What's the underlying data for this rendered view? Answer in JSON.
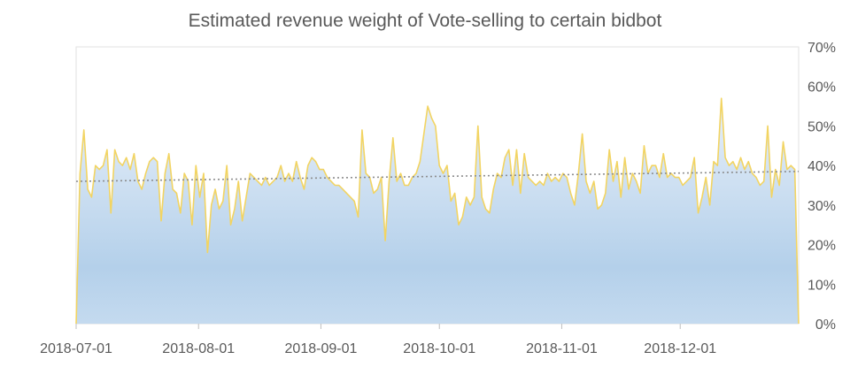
{
  "chart_data": {
    "type": "area",
    "title": "Estimated revenue weight of Vote-selling to certain bidbot",
    "xlabel": "",
    "ylabel": "",
    "x_range": [
      "2018-07-01",
      "2018-12-31"
    ],
    "ylim": [
      0,
      70
    ],
    "y_ticks": [
      "0%",
      "10%",
      "20%",
      "30%",
      "40%",
      "50%",
      "60%",
      "70%"
    ],
    "x_ticks": [
      "2018-07-01",
      "2018-08-01",
      "2018-09-01",
      "2018-10-01",
      "2018-11-01",
      "2018-12-01"
    ],
    "y_axis_side": "right",
    "trendline": {
      "type": "linear",
      "start": 36,
      "end": 38.5
    },
    "colors": {
      "line": "#f2d462",
      "fill_top": "#e8f0fa",
      "fill_bottom": "#b4d0ea",
      "trend": "#8c8c8c"
    },
    "series": [
      {
        "values": [
          0,
          38,
          49,
          34,
          32,
          40,
          39,
          40,
          44,
          28,
          44,
          41,
          40,
          42,
          39,
          43,
          36,
          34,
          38,
          41,
          42,
          41,
          26,
          38,
          43,
          34,
          33,
          28,
          38,
          36,
          25,
          40,
          32,
          38,
          18,
          30,
          34,
          29,
          31,
          40,
          25,
          29,
          36,
          26,
          32,
          38,
          37,
          36,
          35,
          37,
          35,
          36,
          37,
          40,
          36,
          38,
          36,
          41,
          37,
          34,
          40,
          42,
          41,
          39,
          39,
          37,
          36,
          35,
          35,
          34,
          33,
          32,
          31,
          27,
          49,
          38,
          37,
          33,
          34,
          37,
          21,
          36,
          47,
          36,
          38,
          35,
          35,
          37,
          38,
          41,
          48,
          55,
          52,
          50,
          40,
          38,
          40,
          31,
          33,
          25,
          27,
          32,
          30,
          32,
          50,
          32,
          29,
          28,
          34,
          38,
          37,
          42,
          44,
          35,
          44,
          33,
          43,
          37,
          36,
          35,
          36,
          35,
          38,
          36,
          37,
          36,
          38,
          37,
          33,
          30,
          38,
          48,
          36,
          33,
          36,
          29,
          30,
          33,
          44,
          36,
          41,
          32,
          42,
          34,
          38,
          36,
          33,
          45,
          38,
          40,
          40,
          37,
          43,
          37,
          38,
          37,
          37,
          35,
          36,
          37,
          42,
          28,
          32,
          37,
          30,
          41,
          40,
          57,
          42,
          40,
          41,
          39,
          42,
          39,
          41,
          38,
          37,
          35,
          36,
          50,
          32,
          39,
          35,
          46,
          39,
          40,
          39,
          0
        ]
      }
    ]
  }
}
